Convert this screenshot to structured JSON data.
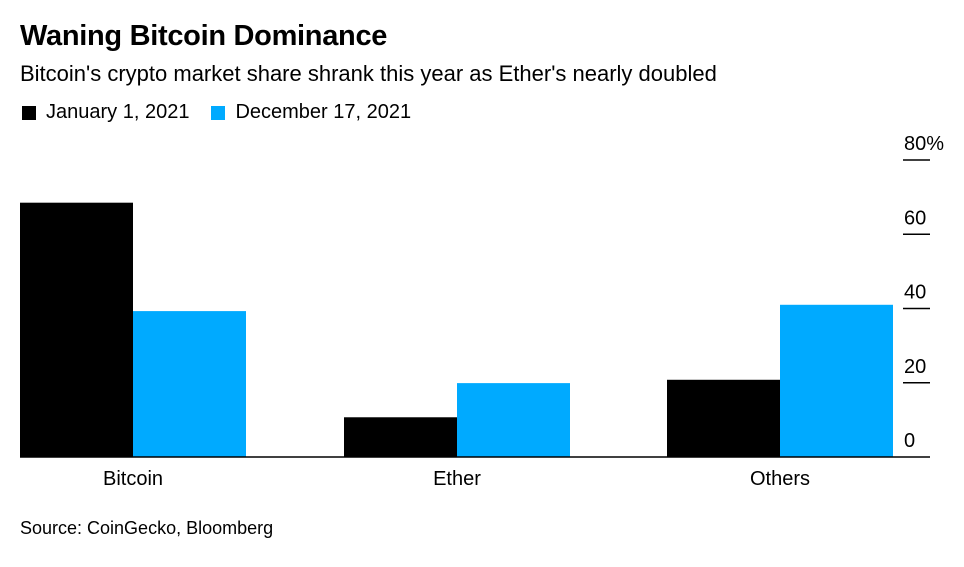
{
  "chart_data": {
    "type": "bar",
    "title": "Waning Bitcoin Dominance",
    "subtitle": "Bitcoin's crypto market share shrank this year as Ether's nearly doubled",
    "categories": [
      "Bitcoin",
      "Ether",
      "Others"
    ],
    "series": [
      {
        "name": "January 1, 2021",
        "color": "#000000",
        "values": [
          68.5,
          10.7,
          20.8
        ]
      },
      {
        "name": "December 17, 2021",
        "color": "#00aaff",
        "values": [
          39.3,
          19.9,
          41.0
        ]
      }
    ],
    "ylim": [
      0,
      80
    ],
    "yticks": [
      0,
      20,
      40,
      60,
      80
    ],
    "ytick_labels": [
      "0",
      "20",
      "40",
      "60",
      "80%"
    ],
    "y_axis_side": "right",
    "legend_placement": "top-left",
    "grid": false
  },
  "source": "Source: CoinGecko, Bloomberg"
}
